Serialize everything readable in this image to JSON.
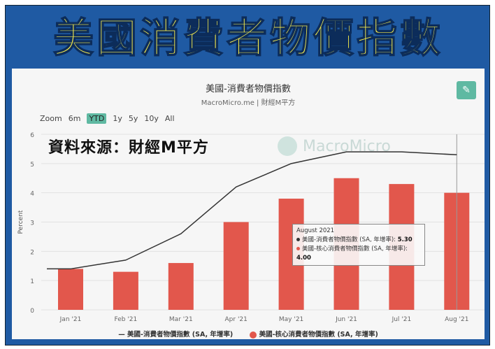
{
  "headline": "美國消費者物價指數",
  "chart_header": {
    "title": "美國-消費者物價指數",
    "subtitle": "MacroMicro.me | 財經M平方"
  },
  "zoom": {
    "label": "Zoom",
    "options": [
      "6m",
      "YTD",
      "1y",
      "5y",
      "10y",
      "All"
    ],
    "selected": "YTD"
  },
  "source_note": "資料來源：財經M平方",
  "watermark": "MacroMicro",
  "tooltip": {
    "title": "August 2021",
    "line1": "美國-消費者物價指數 (SA, 年增率): ",
    "v1": "5.30",
    "line2": "美國-核心消費者物價指數 (SA, 年增率): ",
    "v2": "4.00"
  },
  "colors": {
    "line": "#333333",
    "bar": "#e2574c",
    "accent": "#5fb9a2"
  },
  "chart_data": {
    "type": "bar+line",
    "title": "美國-消費者物價指數",
    "ylabel": "Percent",
    "ylim": [
      0,
      6
    ],
    "yticks": [
      "0",
      "1",
      "2",
      "3",
      "4",
      "5",
      "6"
    ],
    "categories": [
      "Jan '21",
      "Feb '21",
      "Mar '21",
      "Apr '21",
      "May '21",
      "Jun '21",
      "Jul '21",
      "Aug '21"
    ],
    "series": [
      {
        "name": "美國-消費者物價指數 (SA, 年增率)",
        "type": "line",
        "values": [
          1.4,
          1.7,
          2.6,
          4.2,
          5.0,
          5.4,
          5.4,
          5.3
        ]
      },
      {
        "name": "美國-核心消費者物價指數 (SA, 年增率)",
        "type": "bar",
        "values": [
          1.4,
          1.3,
          1.6,
          3.0,
          3.8,
          4.5,
          4.3,
          4.0
        ]
      }
    ],
    "legend": "bottom"
  }
}
